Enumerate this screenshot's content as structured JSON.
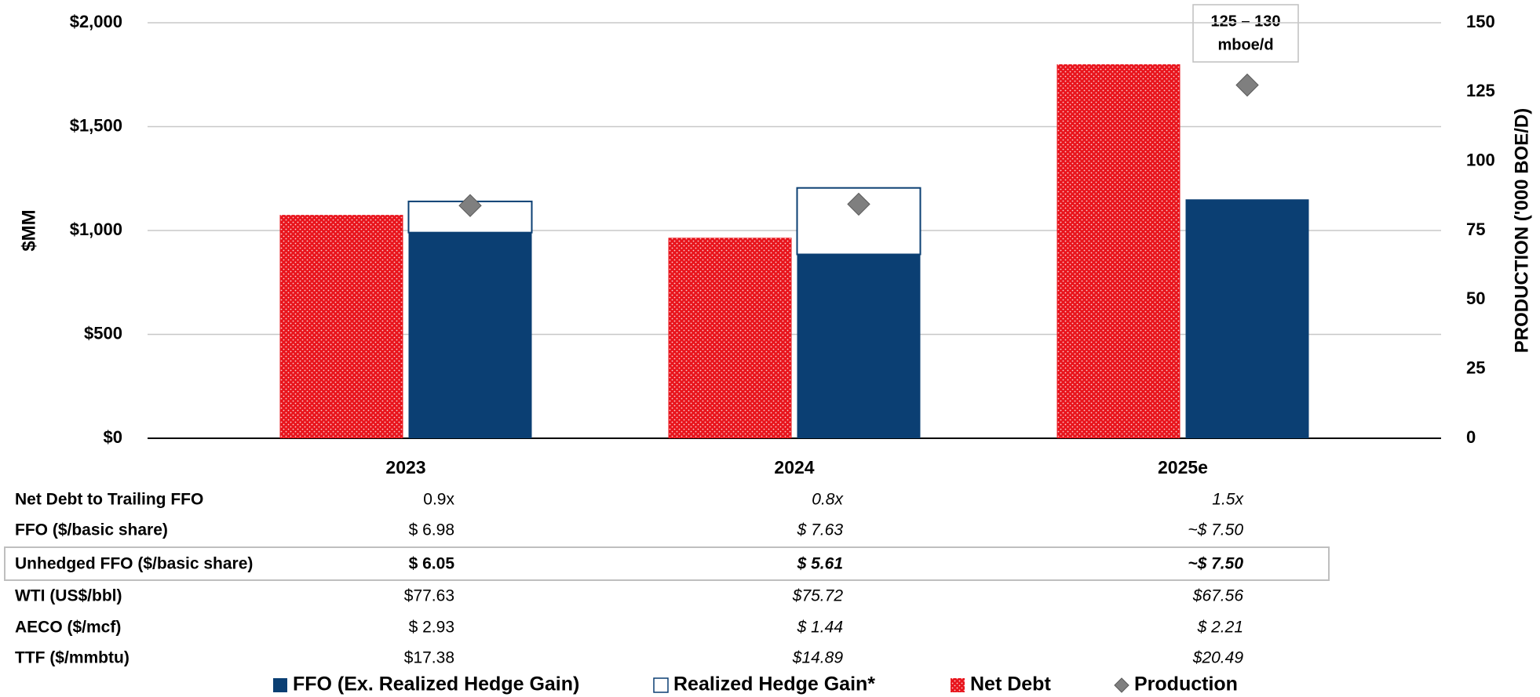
{
  "chart_data": {
    "type": "bar",
    "y_label": "$MM",
    "y2_label": "PRODUCTION ('000 BOE/D)",
    "categories": [
      "2023",
      "2024",
      "2025e"
    ],
    "series": [
      {
        "name": "FFO (Ex. Realized Hedge Gain)",
        "color": "#0b3f73",
        "values": [
          990,
          885,
          1150
        ]
      },
      {
        "name": "Realized Hedge Gain*",
        "color": "#ffffff",
        "stack": true,
        "values": [
          150,
          320,
          null
        ]
      },
      {
        "name": "Net Debt",
        "color": "#e8141c",
        "values": [
          1075,
          965,
          1800
        ]
      },
      {
        "name": "Production",
        "color": "#7f7f7f",
        "axis": "y2",
        "marker": "diamond",
        "values": [
          84,
          84.5,
          127.5
        ]
      }
    ],
    "ylim": [
      0,
      2000
    ],
    "yticks": [
      {
        "value": 0,
        "label": "$0"
      },
      {
        "value": 500,
        "label": "$500"
      },
      {
        "value": 1000,
        "label": "$1,000"
      },
      {
        "value": 1500,
        "label": "$1,500"
      },
      {
        "value": 2000,
        "label": "$2,000"
      }
    ],
    "y2lim": [
      0,
      150
    ],
    "y2ticks": [
      0,
      25,
      50,
      75,
      100,
      125,
      150
    ],
    "grid": true,
    "annotation": [
      "125 – 130",
      "mboe/d"
    ],
    "legend": "bottom"
  },
  "table": {
    "rows": [
      {
        "label": "Net Debt to Trailing FFO",
        "values": [
          "0.9x",
          "0.8x",
          "1.5x"
        ]
      },
      {
        "label": "FFO ($/basic share)",
        "values": [
          "$  6.98",
          "$  7.63",
          "~$  7.50"
        ]
      },
      {
        "label": "Unhedged FFO ($/basic share)",
        "values": [
          "$  6.05",
          "$  5.61",
          "~$  7.50"
        ]
      },
      {
        "label": "WTI (US$/bbl)",
        "values": [
          "$77.63",
          "$75.72",
          "$67.56"
        ]
      },
      {
        "label": "AECO ($/mcf)",
        "values": [
          "$  2.93",
          "$  1.44",
          "$  2.21"
        ]
      },
      {
        "label": "TTF ($/mmbtu)",
        "values": [
          "$17.38",
          "$14.89",
          "$20.49"
        ]
      }
    ]
  }
}
